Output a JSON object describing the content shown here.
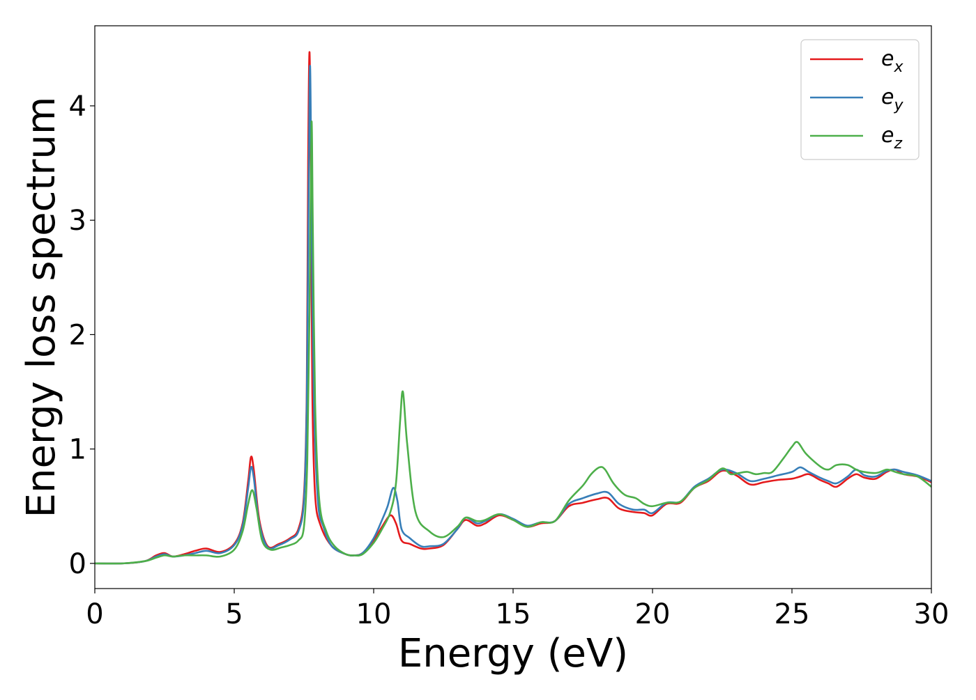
{
  "chart_data": {
    "type": "line",
    "title": "",
    "xlabel": "Energy (eV)",
    "ylabel": "Energy loss spectrum",
    "xlim": [
      0,
      30
    ],
    "ylim": [
      -0.22,
      4.7
    ],
    "xticks": [
      0,
      5,
      10,
      15,
      20,
      25,
      30
    ],
    "yticks": [
      0,
      1,
      2,
      3,
      4
    ],
    "grid": false,
    "legend_position": "top-right",
    "series": [
      {
        "name": "e_x",
        "legend_base": "e",
        "legend_sub": "x",
        "color": "#e41a1c",
        "x": [
          0,
          1,
          1.8,
          2.2,
          2.5,
          2.8,
          3.2,
          3.6,
          4.0,
          4.5,
          5.0,
          5.3,
          5.5,
          5.6,
          5.7,
          5.9,
          6.2,
          6.6,
          7.0,
          7.3,
          7.5,
          7.6,
          7.65,
          7.7,
          7.75,
          7.8,
          7.9,
          8.1,
          8.5,
          9.0,
          9.3,
          9.6,
          10.0,
          10.3,
          10.6,
          10.8,
          11.0,
          11.3,
          11.7,
          12.0,
          12.5,
          13.0,
          13.3,
          13.7,
          14.0,
          14.5,
          15.0,
          15.5,
          16.0,
          16.5,
          17.0,
          17.5,
          18.0,
          18.4,
          18.8,
          19.3,
          19.7,
          20.0,
          20.5,
          21.0,
          21.5,
          22.0,
          22.5,
          23.0,
          23.5,
          24.0,
          24.5,
          25.0,
          25.3,
          25.6,
          26.0,
          26.3,
          26.6,
          27.0,
          27.3,
          27.6,
          28.0,
          28.4,
          28.7,
          29.0,
          29.5,
          30.0
        ],
        "y": [
          0.0,
          0.0,
          0.02,
          0.07,
          0.09,
          0.06,
          0.08,
          0.11,
          0.13,
          0.1,
          0.17,
          0.35,
          0.72,
          0.93,
          0.82,
          0.38,
          0.15,
          0.17,
          0.22,
          0.3,
          0.6,
          1.5,
          3.5,
          4.47,
          3.4,
          1.5,
          0.6,
          0.33,
          0.15,
          0.08,
          0.07,
          0.09,
          0.2,
          0.32,
          0.42,
          0.35,
          0.2,
          0.17,
          0.13,
          0.13,
          0.16,
          0.3,
          0.38,
          0.33,
          0.35,
          0.42,
          0.38,
          0.32,
          0.35,
          0.37,
          0.5,
          0.53,
          0.56,
          0.57,
          0.48,
          0.45,
          0.44,
          0.42,
          0.52,
          0.53,
          0.66,
          0.72,
          0.81,
          0.77,
          0.69,
          0.71,
          0.73,
          0.74,
          0.76,
          0.78,
          0.73,
          0.7,
          0.67,
          0.74,
          0.78,
          0.75,
          0.74,
          0.8,
          0.82,
          0.78,
          0.76,
          0.71
        ]
      },
      {
        "name": "e_y",
        "legend_base": "e",
        "legend_sub": "y",
        "color": "#377eb8",
        "x": [
          0,
          1,
          1.8,
          2.2,
          2.5,
          2.8,
          3.2,
          3.6,
          4.0,
          4.5,
          5.0,
          5.3,
          5.5,
          5.6,
          5.7,
          5.9,
          6.2,
          6.6,
          7.0,
          7.3,
          7.5,
          7.6,
          7.67,
          7.72,
          7.77,
          7.85,
          8.0,
          8.2,
          8.5,
          9.0,
          9.3,
          9.6,
          10.0,
          10.3,
          10.5,
          10.7,
          10.85,
          11.0,
          11.3,
          11.7,
          12.0,
          12.5,
          13.0,
          13.3,
          13.7,
          14.0,
          14.5,
          15.0,
          15.5,
          16.0,
          16.5,
          17.0,
          17.5,
          18.0,
          18.4,
          18.8,
          19.3,
          19.7,
          20.0,
          20.5,
          21.0,
          21.5,
          22.0,
          22.5,
          23.0,
          23.5,
          24.0,
          24.5,
          25.0,
          25.3,
          25.6,
          26.0,
          26.3,
          26.6,
          27.0,
          27.3,
          27.6,
          28.0,
          28.4,
          28.7,
          29.0,
          29.5,
          30.0
        ],
        "y": [
          0.0,
          0.0,
          0.02,
          0.06,
          0.08,
          0.06,
          0.07,
          0.09,
          0.11,
          0.09,
          0.16,
          0.33,
          0.66,
          0.84,
          0.75,
          0.35,
          0.14,
          0.16,
          0.21,
          0.28,
          0.55,
          1.4,
          3.3,
          4.35,
          3.2,
          1.5,
          0.55,
          0.32,
          0.15,
          0.08,
          0.07,
          0.09,
          0.22,
          0.38,
          0.5,
          0.66,
          0.55,
          0.3,
          0.22,
          0.15,
          0.15,
          0.17,
          0.3,
          0.4,
          0.35,
          0.37,
          0.43,
          0.39,
          0.33,
          0.36,
          0.37,
          0.52,
          0.57,
          0.61,
          0.62,
          0.52,
          0.47,
          0.47,
          0.44,
          0.53,
          0.54,
          0.67,
          0.74,
          0.82,
          0.79,
          0.72,
          0.74,
          0.77,
          0.8,
          0.84,
          0.8,
          0.75,
          0.72,
          0.7,
          0.76,
          0.82,
          0.77,
          0.76,
          0.81,
          0.82,
          0.8,
          0.77,
          0.72
        ]
      },
      {
        "name": "e_z",
        "legend_base": "e",
        "legend_sub": "z",
        "color": "#4daf4a",
        "x": [
          0,
          1,
          1.8,
          2.2,
          2.5,
          2.8,
          3.2,
          3.6,
          4.0,
          4.5,
          5.0,
          5.3,
          5.5,
          5.65,
          5.8,
          6.0,
          6.3,
          6.7,
          7.0,
          7.3,
          7.5,
          7.62,
          7.7,
          7.77,
          7.82,
          7.9,
          8.05,
          8.3,
          8.6,
          9.0,
          9.3,
          9.6,
          10.0,
          10.3,
          10.6,
          10.8,
          10.95,
          11.05,
          11.2,
          11.5,
          12.0,
          12.5,
          13.0,
          13.3,
          13.7,
          14.0,
          14.5,
          15.0,
          15.5,
          16.0,
          16.5,
          17.0,
          17.5,
          17.8,
          18.1,
          18.3,
          18.6,
          19.0,
          19.4,
          19.7,
          20.0,
          20.5,
          21.0,
          21.5,
          22.0,
          22.5,
          22.8,
          23.1,
          23.4,
          23.7,
          24.0,
          24.3,
          24.7,
          25.0,
          25.2,
          25.5,
          26.0,
          26.3,
          26.6,
          27.0,
          27.4,
          28.0,
          28.4,
          28.7,
          29.0,
          29.5,
          30.0
        ],
        "y": [
          0.0,
          0.0,
          0.02,
          0.05,
          0.07,
          0.06,
          0.07,
          0.07,
          0.07,
          0.06,
          0.12,
          0.28,
          0.52,
          0.64,
          0.48,
          0.2,
          0.12,
          0.14,
          0.16,
          0.2,
          0.32,
          0.9,
          2.2,
          3.85,
          2.9,
          1.4,
          0.55,
          0.28,
          0.15,
          0.08,
          0.07,
          0.08,
          0.18,
          0.3,
          0.45,
          0.7,
          1.25,
          1.5,
          1.05,
          0.45,
          0.28,
          0.23,
          0.32,
          0.4,
          0.37,
          0.38,
          0.43,
          0.38,
          0.32,
          0.36,
          0.37,
          0.55,
          0.68,
          0.78,
          0.84,
          0.82,
          0.7,
          0.6,
          0.57,
          0.52,
          0.5,
          0.53,
          0.54,
          0.66,
          0.73,
          0.83,
          0.78,
          0.79,
          0.8,
          0.78,
          0.79,
          0.8,
          0.92,
          1.02,
          1.06,
          0.96,
          0.85,
          0.82,
          0.86,
          0.86,
          0.81,
          0.79,
          0.82,
          0.8,
          0.78,
          0.76,
          0.67
        ]
      }
    ]
  }
}
